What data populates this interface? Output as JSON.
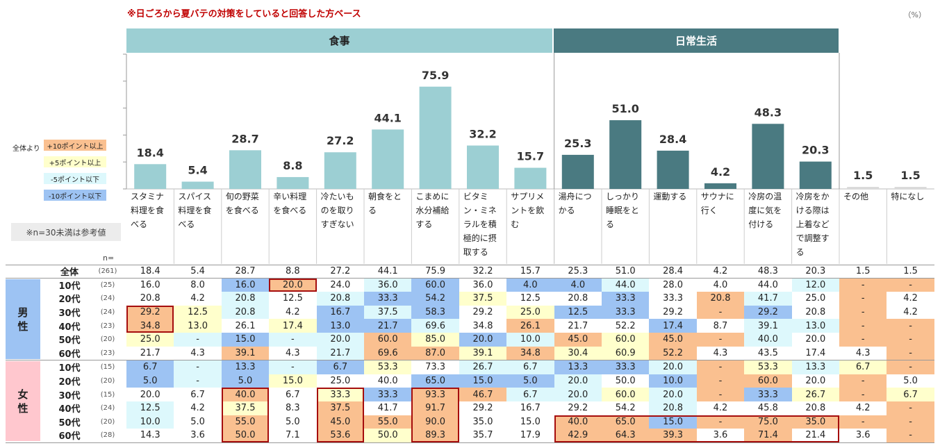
{
  "note_top": "※日ごろから夏バテの対策をしていると回答した方ベース",
  "unit_label": "（%）",
  "groups": [
    {
      "label": "食事",
      "color": "#9ccfd3"
    },
    {
      "label": "日常生活",
      "color": "#4a7a81"
    }
  ],
  "legend": {
    "caption": "全体より",
    "items": [
      {
        "label": "+10ポイント以上",
        "color": "#fac090"
      },
      {
        "label": "+5ポイント以上",
        "color": "#ffffcc"
      },
      {
        "label": "-5ポイント以下",
        "color": "#ddf8fc"
      },
      {
        "label": "-10ポイント以下",
        "color": "#9dc3f3"
      }
    ]
  },
  "ref_note": "※n=30未満は参考値",
  "n_label": "n=",
  "gender_labels": {
    "male": "男\n性",
    "female": "女\n性"
  },
  "colors": {
    "food_bar": "#9ccfd3",
    "life_bar": "#4a7a81",
    "other_bar": "#d9d9d9",
    "male_box": "#9dc3f3",
    "female_box": "#ffc7ce",
    "highlight": "#a50d0d"
  },
  "chart_data": {
    "type": "bar",
    "categories": [
      "スタミナ\n料理を食\nべる",
      "スパイス\n料理を食\nべる",
      "旬の野菜\nを食べる",
      "辛い料理\nを食べる",
      "冷たいも\nのを取り\nすぎない",
      "朝食をと\nる",
      "こまめに\n水分補給\nする",
      "ビタミ\nン・ミネ\nラルを積\n極的に摂\n取する",
      "サプリメ\nントを飲\nむ",
      "湯舟につ\nかる",
      "しっかり\n睡眠をと\nる",
      "運動する",
      "サウナに\n行く",
      "冷房の温\n度に気を\n付ける",
      "冷房をか\nける際は\n上着など\nで調整す\nる",
      "その他",
      "特になし"
    ],
    "category_group": [
      "食事",
      "食事",
      "食事",
      "食事",
      "食事",
      "食事",
      "食事",
      "食事",
      "食事",
      "日常生活",
      "日常生活",
      "日常生活",
      "日常生活",
      "日常生活",
      "日常生活",
      "",
      ""
    ],
    "values": [
      18.4,
      5.4,
      28.7,
      8.8,
      27.2,
      44.1,
      75.9,
      32.2,
      15.7,
      25.3,
      51.0,
      28.4,
      4.2,
      48.3,
      20.3,
      1.5,
      1.5
    ],
    "value_labels": [
      "18.4",
      "5.4",
      "28.7",
      "8.8",
      "27.2",
      "44.1",
      "75.9",
      "32.2",
      "15.7",
      "25.3",
      "51.0",
      "28.4",
      "4.2",
      "48.3",
      "20.3",
      "1.5",
      "1.5"
    ],
    "ylim": [
      0,
      100
    ]
  },
  "table": {
    "rows": [
      {
        "label": "全体",
        "n": "(261)",
        "values": [
          "18.4",
          "5.4",
          "28.7",
          "8.8",
          "27.2",
          "44.1",
          "75.9",
          "32.2",
          "15.7",
          "25.3",
          "51.0",
          "28.4",
          "4.2",
          "48.3",
          "20.3",
          "1.5",
          "1.5"
        ]
      },
      {
        "label": "10代",
        "n": "(25)",
        "values": [
          "16.0",
          "8.0",
          "16.0",
          "20.0",
          "24.0",
          "36.0",
          "60.0",
          "36.0",
          "4.0",
          "4.0",
          "44.0",
          "28.0",
          "4.0",
          "44.0",
          "12.0",
          "-",
          "-"
        ]
      },
      {
        "label": "20代",
        "n": "(24)",
        "values": [
          "20.8",
          "4.2",
          "20.8",
          "12.5",
          "20.8",
          "33.3",
          "54.2",
          "37.5",
          "12.5",
          "20.8",
          "33.3",
          "33.3",
          "20.8",
          "41.7",
          "25.0",
          "-",
          "4.2"
        ]
      },
      {
        "label": "30代",
        "n": "(24)",
        "values": [
          "29.2",
          "12.5",
          "20.8",
          "4.2",
          "16.7",
          "37.5",
          "58.3",
          "29.2",
          "25.0",
          "12.5",
          "33.3",
          "29.2",
          "-",
          "29.2",
          "20.8",
          "-",
          "4.2"
        ]
      },
      {
        "label": "40代",
        "n": "(23)",
        "values": [
          "34.8",
          "13.0",
          "26.1",
          "17.4",
          "13.0",
          "21.7",
          "69.6",
          "34.8",
          "26.1",
          "21.7",
          "52.2",
          "17.4",
          "8.7",
          "39.1",
          "13.0",
          "-",
          "-"
        ]
      },
      {
        "label": "50代",
        "n": "(20)",
        "values": [
          "25.0",
          "-",
          "15.0",
          "-",
          "20.0",
          "60.0",
          "85.0",
          "20.0",
          "10.0",
          "45.0",
          "60.0",
          "45.0",
          "-",
          "40.0",
          "20.0",
          "-",
          "-"
        ]
      },
      {
        "label": "60代",
        "n": "(23)",
        "values": [
          "21.7",
          "4.3",
          "39.1",
          "4.3",
          "21.7",
          "69.6",
          "87.0",
          "39.1",
          "34.8",
          "30.4",
          "60.9",
          "52.2",
          "4.3",
          "43.5",
          "17.4",
          "4.3",
          "-"
        ]
      },
      {
        "label": "10代",
        "n": "(15)",
        "values": [
          "6.7",
          "-",
          "13.3",
          "-",
          "6.7",
          "53.3",
          "73.3",
          "26.7",
          "6.7",
          "13.3",
          "33.3",
          "20.0",
          "-",
          "53.3",
          "13.3",
          "6.7",
          "-"
        ]
      },
      {
        "label": "20代",
        "n": "(20)",
        "values": [
          "5.0",
          "-",
          "5.0",
          "15.0",
          "25.0",
          "40.0",
          "65.0",
          "15.0",
          "5.0",
          "20.0",
          "50.0",
          "10.0",
          "-",
          "60.0",
          "20.0",
          "-",
          "5.0"
        ]
      },
      {
        "label": "30代",
        "n": "(15)",
        "values": [
          "20.0",
          "6.7",
          "40.0",
          "6.7",
          "33.3",
          "33.3",
          "93.3",
          "46.7",
          "6.7",
          "20.0",
          "60.0",
          "20.0",
          "-",
          "33.3",
          "26.7",
          "-",
          "6.7"
        ]
      },
      {
        "label": "40代",
        "n": "(24)",
        "values": [
          "12.5",
          "4.2",
          "37.5",
          "8.3",
          "37.5",
          "41.7",
          "91.7",
          "29.2",
          "16.7",
          "29.2",
          "54.2",
          "20.8",
          "4.2",
          "45.8",
          "20.8",
          "4.2",
          "-"
        ]
      },
      {
        "label": "50代",
        "n": "(20)",
        "values": [
          "10.0",
          "5.0",
          "55.0",
          "5.0",
          "45.0",
          "55.0",
          "90.0",
          "35.0",
          "15.0",
          "40.0",
          "65.0",
          "15.0",
          "-",
          "75.0",
          "35.0",
          "-",
          "-"
        ]
      },
      {
        "label": "60代",
        "n": "(28)",
        "values": [
          "14.3",
          "3.6",
          "50.0",
          "7.1",
          "53.6",
          "50.0",
          "89.3",
          "35.7",
          "17.9",
          "42.9",
          "64.3",
          "39.3",
          "3.6",
          "71.4",
          "21.4",
          "3.6",
          "-"
        ]
      }
    ]
  }
}
